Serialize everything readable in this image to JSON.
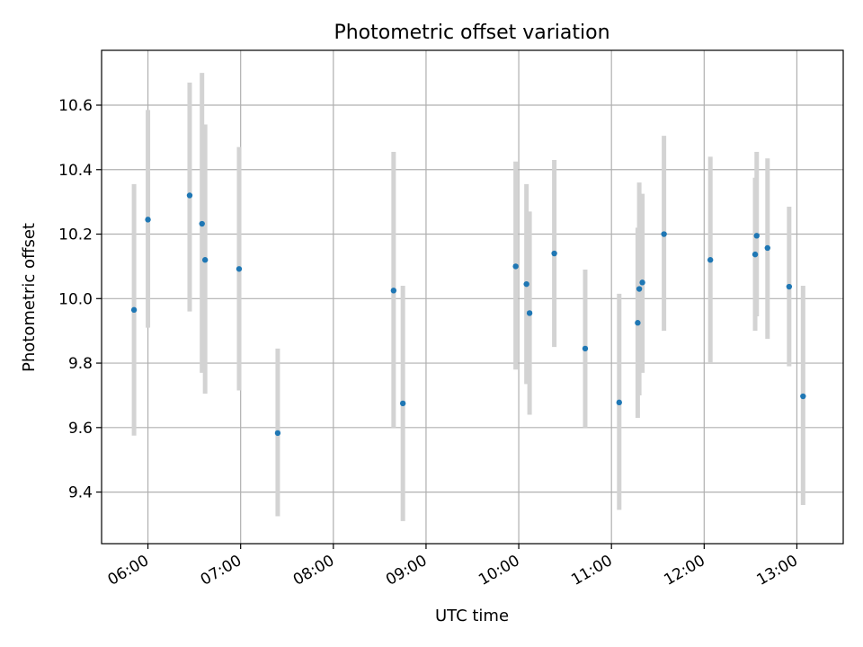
{
  "chart_data": {
    "type": "scatter",
    "title": "Photometric offset variation",
    "xlabel": "UTC time",
    "ylabel": "Photometric offset",
    "grid": true,
    "xlim": [
      "05:30",
      "13:30"
    ],
    "ylim": [
      9.24,
      10.77
    ],
    "xticks": [
      "06:00",
      "07:00",
      "08:00",
      "09:00",
      "10:00",
      "11:00",
      "12:00",
      "13:00"
    ],
    "yticks": [
      "9.4",
      "9.6",
      "9.8",
      "10.0",
      "10.2",
      "10.4",
      "10.6"
    ],
    "colors": {
      "point": "#1f77b4",
      "errorbar": "#d3d3d3",
      "grid": "#b0b0b0"
    },
    "points": [
      {
        "x": "05:51",
        "y": 9.965,
        "ylow": 9.575,
        "yhigh": 10.355
      },
      {
        "x": "06:00",
        "y": 10.245,
        "ylow": 9.91,
        "yhigh": 10.585
      },
      {
        "x": "06:27",
        "y": 10.32,
        "ylow": 9.96,
        "yhigh": 10.67
      },
      {
        "x": "06:35",
        "y": 10.232,
        "ylow": 9.77,
        "yhigh": 10.7
      },
      {
        "x": "06:37",
        "y": 10.12,
        "ylow": 9.705,
        "yhigh": 10.54
      },
      {
        "x": "06:59",
        "y": 10.092,
        "ylow": 9.715,
        "yhigh": 10.47
      },
      {
        "x": "07:24",
        "y": 9.583,
        "ylow": 9.325,
        "yhigh": 9.845
      },
      {
        "x": "08:39",
        "y": 10.025,
        "ylow": 9.6,
        "yhigh": 10.455
      },
      {
        "x": "08:45",
        "y": 9.675,
        "ylow": 9.31,
        "yhigh": 10.04
      },
      {
        "x": "09:58",
        "y": 10.1,
        "ylow": 9.78,
        "yhigh": 10.425
      },
      {
        "x": "10:05",
        "y": 10.045,
        "ylow": 9.735,
        "yhigh": 10.355
      },
      {
        "x": "10:07",
        "y": 9.955,
        "ylow": 9.64,
        "yhigh": 10.27
      },
      {
        "x": "10:23",
        "y": 10.14,
        "ylow": 9.85,
        "yhigh": 10.43
      },
      {
        "x": "10:43",
        "y": 9.845,
        "ylow": 9.6,
        "yhigh": 10.09
      },
      {
        "x": "11:05",
        "y": 9.678,
        "ylow": 9.345,
        "yhigh": 10.015
      },
      {
        "x": "11:17",
        "y": 9.925,
        "ylow": 9.63,
        "yhigh": 10.22
      },
      {
        "x": "11:18",
        "y": 10.03,
        "ylow": 9.7,
        "yhigh": 10.36
      },
      {
        "x": "11:20",
        "y": 10.05,
        "ylow": 9.77,
        "yhigh": 10.325
      },
      {
        "x": "11:34",
        "y": 10.2,
        "ylow": 9.9,
        "yhigh": 10.505
      },
      {
        "x": "12:04",
        "y": 10.12,
        "ylow": 9.8,
        "yhigh": 10.44
      },
      {
        "x": "12:33",
        "y": 10.137,
        "ylow": 9.9,
        "yhigh": 10.375
      },
      {
        "x": "12:34",
        "y": 10.195,
        "ylow": 9.945,
        "yhigh": 10.455
      },
      {
        "x": "12:41",
        "y": 10.157,
        "ylow": 9.875,
        "yhigh": 10.435
      },
      {
        "x": "12:55",
        "y": 10.037,
        "ylow": 9.79,
        "yhigh": 10.285
      },
      {
        "x": "13:04",
        "y": 9.697,
        "ylow": 9.36,
        "yhigh": 10.04
      }
    ]
  }
}
